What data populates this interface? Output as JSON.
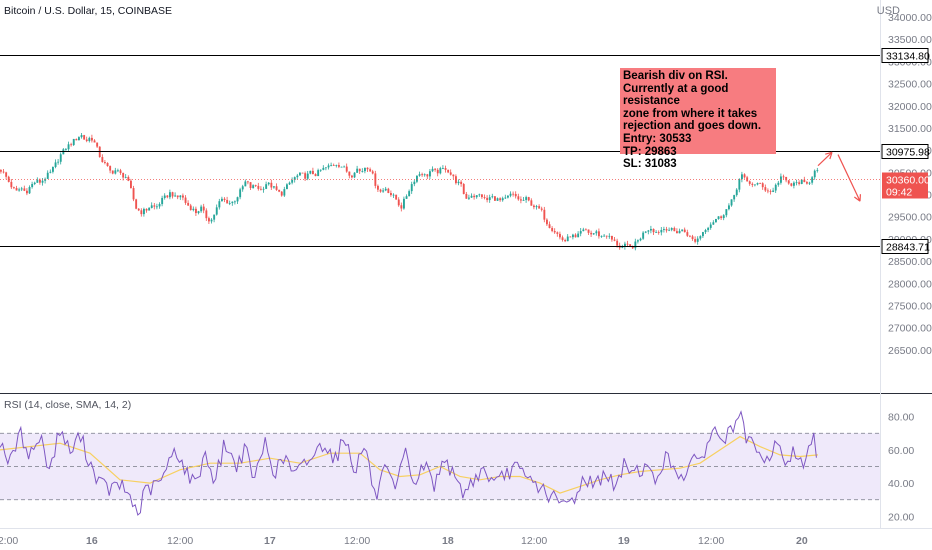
{
  "header": {
    "symbol_title": "Bitcoin / U.S. Dollar, 15, COINBASE",
    "currency": "USD"
  },
  "note": {
    "text": "Bearish div on RSI.\nCurrently at a good resistance\nzone from where it takes\nrejection and goes down.\nEntry: 30533\nTP: 29863\nSL: 31083"
  },
  "rsi": {
    "title": "RSI (14, close, SMA, 14, 2)"
  },
  "chart_data": [
    {
      "type": "candlestick",
      "title": "Bitcoin / U.S. Dollar, 15, COINBASE",
      "y_unit": "USD",
      "ylim": [
        26000,
        34000
      ],
      "y_ticks": [
        26500,
        27000,
        27500,
        28000,
        28500,
        29000,
        29500,
        30000,
        30500,
        31000,
        31500,
        32000,
        32500,
        33000,
        33500,
        34000
      ],
      "x_ticks": [
        "12:00",
        "16",
        "12:00",
        "17",
        "12:00",
        "18",
        "12:00",
        "19",
        "12:00",
        "20"
      ],
      "price_path": [
        [
          0,
          30550
        ],
        [
          5,
          30400
        ],
        [
          10,
          30200
        ],
        [
          15,
          30050
        ],
        [
          20,
          30150
        ],
        [
          25,
          30050
        ],
        [
          30,
          30200
        ],
        [
          35,
          30300
        ],
        [
          40,
          30280
        ],
        [
          45,
          30400
        ],
        [
          50,
          30500
        ],
        [
          55,
          30700
        ],
        [
          60,
          30900
        ],
        [
          65,
          31050
        ],
        [
          70,
          31150
        ],
        [
          75,
          31250
        ],
        [
          80,
          31350
        ],
        [
          85,
          31200
        ],
        [
          90,
          31300
        ],
        [
          95,
          31100
        ],
        [
          100,
          30800
        ],
        [
          105,
          30650
        ],
        [
          110,
          30500
        ],
        [
          115,
          30550
        ],
        [
          120,
          30450
        ],
        [
          125,
          30400
        ],
        [
          130,
          30100
        ],
        [
          135,
          29700
        ],
        [
          140,
          29600
        ],
        [
          145,
          29650
        ],
        [
          150,
          29750
        ],
        [
          155,
          29700
        ],
        [
          160,
          29850
        ],
        [
          165,
          29950
        ],
        [
          170,
          30050
        ],
        [
          175,
          29900
        ],
        [
          180,
          30000
        ],
        [
          185,
          29800
        ],
        [
          190,
          29700
        ],
        [
          195,
          29600
        ],
        [
          200,
          29700
        ],
        [
          205,
          29500
        ],
        [
          210,
          29400
        ],
        [
          215,
          29650
        ],
        [
          220,
          29900
        ],
        [
          225,
          29850
        ],
        [
          230,
          29800
        ],
        [
          235,
          29900
        ],
        [
          240,
          30100
        ],
        [
          245,
          30300
        ],
        [
          250,
          30150
        ],
        [
          255,
          30200
        ],
        [
          260,
          30100
        ],
        [
          265,
          30250
        ],
        [
          270,
          30200
        ],
        [
          275,
          30100
        ],
        [
          280,
          30000
        ],
        [
          285,
          30150
        ],
        [
          290,
          30300
        ],
        [
          295,
          30400
        ],
        [
          300,
          30450
        ],
        [
          305,
          30400
        ],
        [
          310,
          30500
        ],
        [
          315,
          30450
        ],
        [
          320,
          30550
        ],
        [
          325,
          30600
        ],
        [
          330,
          30650
        ],
        [
          335,
          30700
        ],
        [
          340,
          30650
        ],
        [
          345,
          30550
        ],
        [
          350,
          30400
        ],
        [
          355,
          30600
        ],
        [
          360,
          30500
        ],
        [
          365,
          30650
        ],
        [
          370,
          30550
        ],
        [
          375,
          30200
        ],
        [
          380,
          30050
        ],
        [
          385,
          30150
        ],
        [
          390,
          30000
        ],
        [
          395,
          29900
        ],
        [
          400,
          29700
        ],
        [
          405,
          29950
        ],
        [
          410,
          30200
        ],
        [
          415,
          30400
        ],
        [
          420,
          30500
        ],
        [
          425,
          30400
        ],
        [
          430,
          30550
        ],
        [
          435,
          30500
        ],
        [
          440,
          30550
        ],
        [
          445,
          30600
        ],
        [
          450,
          30450
        ],
        [
          455,
          30300
        ],
        [
          460,
          30200
        ],
        [
          465,
          29900
        ],
        [
          470,
          30000
        ],
        [
          475,
          29950
        ],
        [
          480,
          30000
        ],
        [
          485,
          29850
        ],
        [
          490,
          29950
        ],
        [
          495,
          29900
        ],
        [
          500,
          29850
        ],
        [
          505,
          29900
        ],
        [
          510,
          30000
        ],
        [
          515,
          29950
        ],
        [
          520,
          29850
        ],
        [
          525,
          29900
        ],
        [
          530,
          29800
        ],
        [
          535,
          29700
        ],
        [
          540,
          29650
        ],
        [
          545,
          29400
        ],
        [
          550,
          29250
        ],
        [
          555,
          29150
        ],
        [
          560,
          29000
        ],
        [
          565,
          28950
        ],
        [
          570,
          29100
        ],
        [
          575,
          29000
        ],
        [
          580,
          29150
        ],
        [
          585,
          29200
        ],
        [
          590,
          29100
        ],
        [
          595,
          29150
        ],
        [
          600,
          29050
        ],
        [
          605,
          29100
        ],
        [
          610,
          29000
        ],
        [
          615,
          28900
        ],
        [
          620,
          28800
        ],
        [
          625,
          28850
        ],
        [
          630,
          28800
        ],
        [
          635,
          28900
        ],
        [
          640,
          29050
        ],
        [
          645,
          29200
        ],
        [
          650,
          29250
        ],
        [
          655,
          29150
        ],
        [
          660,
          29200
        ],
        [
          665,
          29250
        ],
        [
          670,
          29200
        ],
        [
          675,
          29150
        ],
        [
          680,
          29200
        ],
        [
          685,
          29150
        ],
        [
          690,
          29000
        ],
        [
          695,
          28950
        ],
        [
          700,
          29100
        ],
        [
          705,
          29250
        ],
        [
          710,
          29350
        ],
        [
          715,
          29450
        ],
        [
          720,
          29500
        ],
        [
          725,
          29650
        ],
        [
          730,
          29800
        ],
        [
          735,
          30100
        ],
        [
          740,
          30450
        ],
        [
          745,
          30300
        ],
        [
          750,
          30250
        ],
        [
          755,
          30200
        ],
        [
          760,
          30250
        ],
        [
          765,
          30100
        ],
        [
          770,
          30050
        ],
        [
          775,
          30200
        ],
        [
          780,
          30400
        ],
        [
          785,
          30300
        ],
        [
          790,
          30200
        ],
        [
          795,
          30250
        ],
        [
          800,
          30300
        ],
        [
          805,
          30200
        ],
        [
          810,
          30350
        ],
        [
          815,
          30650
        ],
        [
          818,
          30380
        ]
      ],
      "horizontal_levels": [
        {
          "name": "resistance-upper",
          "value": 33134.8,
          "label": "33134.80"
        },
        {
          "name": "resistance",
          "value": 30975.98,
          "label": "30975.98"
        },
        {
          "name": "support",
          "value": 28843.71,
          "label": "28843.71"
        }
      ],
      "current_price": {
        "value": 30360.0,
        "label": "30360.00",
        "countdown": "09:42"
      },
      "annotation_arrows": [
        {
          "name": "up-arrow",
          "from": [
            818,
            30650
          ],
          "to": [
            832,
            30950
          ]
        },
        {
          "name": "down-arrow",
          "from": [
            838,
            30900
          ],
          "to": [
            860,
            29850
          ]
        }
      ],
      "colors": {
        "up": "#26a69a",
        "down": "#ef5350",
        "level": "#000000",
        "current_price": "#ef5350",
        "arrow": "#ef5350"
      }
    },
    {
      "type": "line",
      "title": "RSI (14, close, SMA, 14, 2)",
      "ylim": [
        16,
        84
      ],
      "y_ticks": [
        20,
        40,
        60,
        80
      ],
      "band": [
        30,
        70
      ],
      "midline": 50,
      "series": [
        {
          "name": "RSI",
          "values": [
            [
              0,
              66
            ],
            [
              10,
              52
            ],
            [
              20,
              70
            ],
            [
              30,
              57
            ],
            [
              40,
              68
            ],
            [
              50,
              48
            ],
            [
              60,
              73
            ],
            [
              70,
              58
            ],
            [
              80,
              69
            ],
            [
              90,
              52
            ],
            [
              100,
              40
            ],
            [
              110,
              36
            ],
            [
              120,
              39
            ],
            [
              130,
              32
            ],
            [
              138,
              21
            ],
            [
              145,
              35
            ],
            [
              155,
              38
            ],
            [
              165,
              45
            ],
            [
              175,
              62
            ],
            [
              185,
              48
            ],
            [
              195,
              39
            ],
            [
              205,
              58
            ],
            [
              215,
              41
            ],
            [
              225,
              65
            ],
            [
              235,
              50
            ],
            [
              245,
              60
            ],
            [
              255,
              42
            ],
            [
              265,
              65
            ],
            [
              275,
              46
            ],
            [
              285,
              56
            ],
            [
              295,
              44
            ],
            [
              305,
              52
            ],
            [
              315,
              58
            ],
            [
              325,
              65
            ],
            [
              335,
              54
            ],
            [
              345,
              68
            ],
            [
              355,
              48
            ],
            [
              365,
              64
            ],
            [
              375,
              30
            ],
            [
              385,
              48
            ],
            [
              395,
              34
            ],
            [
              405,
              58
            ],
            [
              415,
              39
            ],
            [
              425,
              52
            ],
            [
              435,
              38
            ],
            [
              445,
              58
            ],
            [
              455,
              40
            ],
            [
              465,
              34
            ],
            [
              475,
              44
            ],
            [
              485,
              48
            ],
            [
              495,
              38
            ],
            [
              505,
              45
            ],
            [
              515,
              50
            ],
            [
              525,
              43
            ],
            [
              535,
              40
            ],
            [
              545,
              35
            ],
            [
              555,
              30
            ],
            [
              565,
              26
            ],
            [
              575,
              32
            ],
            [
              585,
              44
            ],
            [
              595,
              38
            ],
            [
              605,
              48
            ],
            [
              615,
              36
            ],
            [
              625,
              52
            ],
            [
              635,
              47
            ],
            [
              645,
              50
            ],
            [
              655,
              41
            ],
            [
              665,
              56
            ],
            [
              675,
              48
            ],
            [
              685,
              45
            ],
            [
              695,
              53
            ],
            [
              705,
              60
            ],
            [
              715,
              72
            ],
            [
              725,
              66
            ],
            [
              735,
              76
            ],
            [
              740,
              81
            ],
            [
              745,
              68
            ],
            [
              755,
              60
            ],
            [
              765,
              50
            ],
            [
              775,
              64
            ],
            [
              785,
              53
            ],
            [
              795,
              59
            ],
            [
              805,
              51
            ],
            [
              813,
              68
            ],
            [
              818,
              55
            ]
          ]
        },
        {
          "name": "RSI-based MA",
          "values": [
            [
              0,
              60
            ],
            [
              30,
              62
            ],
            [
              60,
              64
            ],
            [
              90,
              58
            ],
            [
              120,
              42
            ],
            [
              150,
              40
            ],
            [
              180,
              48
            ],
            [
              210,
              52
            ],
            [
              240,
              52
            ],
            [
              270,
              55
            ],
            [
              300,
              52
            ],
            [
              330,
              58
            ],
            [
              360,
              58
            ],
            [
              380,
              48
            ],
            [
              400,
              44
            ],
            [
              420,
              45
            ],
            [
              440,
              50
            ],
            [
              460,
              44
            ],
            [
              480,
              42
            ],
            [
              500,
              44
            ],
            [
              520,
              44
            ],
            [
              540,
              40
            ],
            [
              560,
              34
            ],
            [
              580,
              38
            ],
            [
              600,
              42
            ],
            [
              620,
              45
            ],
            [
              640,
              47
            ],
            [
              660,
              48
            ],
            [
              680,
              49
            ],
            [
              700,
              52
            ],
            [
              720,
              60
            ],
            [
              740,
              68
            ],
            [
              760,
              62
            ],
            [
              780,
              57
            ],
            [
              800,
              56
            ],
            [
              818,
              57
            ]
          ]
        }
      ],
      "colors": {
        "rsi": "#7e57c2",
        "ma": "#f7d060",
        "band_fill": "#efe9fa",
        "band_line": "#787b86"
      }
    }
  ]
}
